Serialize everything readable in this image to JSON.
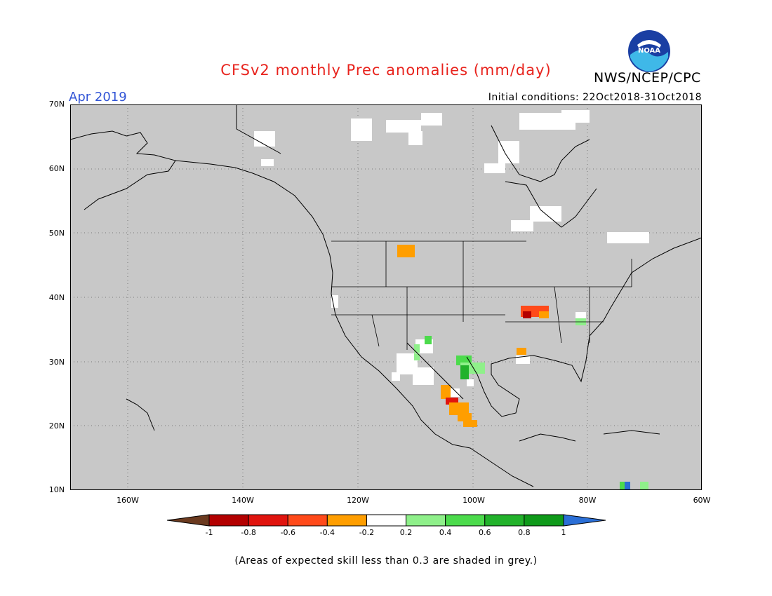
{
  "title": "CFSv2 monthly Prec anomalies (mm/day)",
  "month": "Apr 2019",
  "agency": "NWS/NCEP/CPC",
  "logo_text": "NOAA",
  "initial_conditions": "Initial conditions: 22Oct2018-31Oct2018",
  "lat_labels": [
    "70N",
    "60N",
    "50N",
    "40N",
    "30N",
    "20N",
    "10N"
  ],
  "lon_labels": [
    "160W",
    "140W",
    "120W",
    "100W",
    "80W",
    "60W"
  ],
  "colorbar_labels": [
    "-1",
    "-0.8",
    "-0.6",
    "-0.4",
    "-0.2",
    "0.2",
    "0.4",
    "0.6",
    "0.8",
    "1"
  ],
  "colorbar_colors": [
    "#6b3a1f",
    "#b30000",
    "#e0140e",
    "#ff4a1a",
    "#ff9e00",
    "#ffffff",
    "#8ff08a",
    "#4cdb4c",
    "#22b22b",
    "#0f9a1a",
    "#2b6fd6"
  ],
  "map_background": "#c8c8c8",
  "footer": "(Areas of expected skill less than 0.3 are shaded in grey.)",
  "map_extent": {
    "lon": [
      -170,
      -60
    ],
    "lat": [
      10,
      70
    ]
  }
}
